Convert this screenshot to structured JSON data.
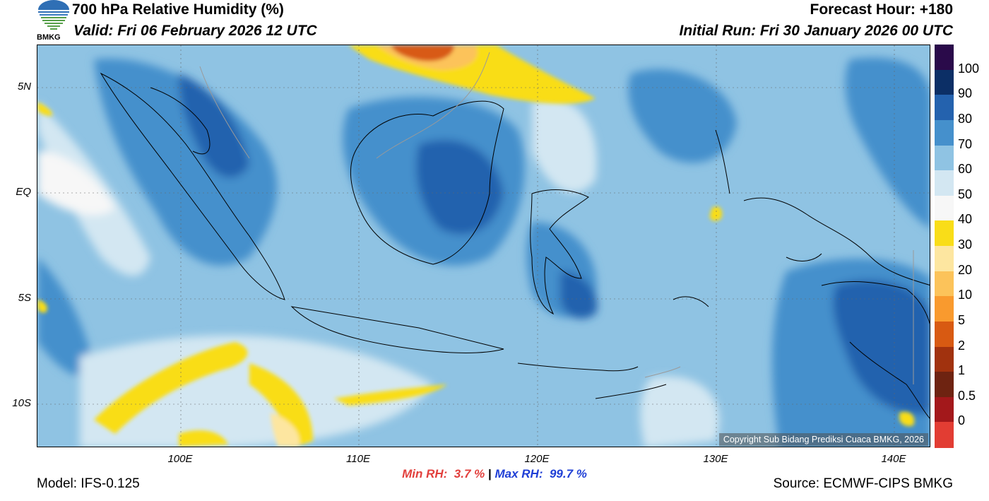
{
  "header": {
    "title": "700 hPa Relative Humidity (%)",
    "valid": "Valid: Fri 06 February 2026 12 UTC",
    "forecast_hour": "Forecast Hour: +180",
    "initial_run": "Initial Run: Fri 30 January 2026 00 UTC",
    "logo_text": "BMKG"
  },
  "axes": {
    "lat_labels": [
      "5N",
      "EQ",
      "5S",
      "10S"
    ],
    "lon_labels": [
      "100E",
      "110E",
      "120E",
      "130E",
      "140E"
    ],
    "lat_range": [
      -12,
      7
    ],
    "lon_range": [
      92,
      142
    ]
  },
  "colorbar": {
    "labels": [
      "100",
      "90",
      "80",
      "70",
      "60",
      "50",
      "40",
      "30",
      "20",
      "10",
      "5",
      "2",
      "1",
      "0.5",
      "0"
    ],
    "colors": [
      "#2a0a4a",
      "#0c2f66",
      "#2462ae",
      "#4590cc",
      "#8fc3e3",
      "#d3e7f2",
      "#f7f7f7",
      "#f9dd18",
      "#fde6a0",
      "#fcc35a",
      "#f99a2e",
      "#d85a12",
      "#a1320e",
      "#6e2311",
      "#a3181b",
      "#e23d33"
    ]
  },
  "stats": {
    "min_label": "Min RH:",
    "min_value": "3.7 %",
    "separator": "|",
    "max_label": "Max RH:",
    "max_value": "99.7 %"
  },
  "footer": {
    "model": "Model: IFS-0.125",
    "source": "Source: ECMWF-CIPS BMKG",
    "copyright": "Copyright Sub Bidang Prediksi Cuaca BMKG, 2026"
  }
}
